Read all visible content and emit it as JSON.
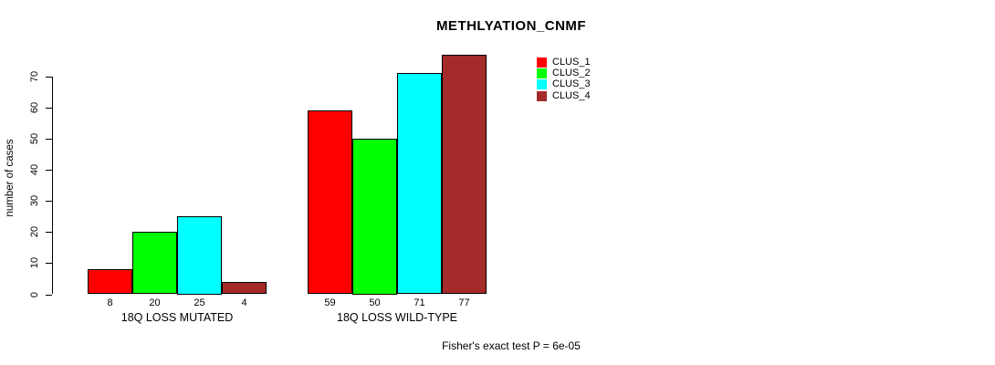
{
  "chart_data": {
    "type": "bar",
    "title": "METHLYATION_CNMF",
    "ylabel": "number of cases",
    "xlabel": "",
    "categories": [
      "18Q LOSS MUTATED",
      "18Q LOSS WILD-TYPE"
    ],
    "series": [
      {
        "name": "CLUS_1",
        "color": "#FF0000",
        "values": [
          8,
          59
        ]
      },
      {
        "name": "CLUS_2",
        "color": "#00FF00",
        "values": [
          20,
          50
        ]
      },
      {
        "name": "CLUS_3",
        "color": "#00FFFF",
        "values": [
          25,
          71
        ]
      },
      {
        "name": "CLUS_4",
        "color": "#A52A2A",
        "values": [
          4,
          77
        ]
      }
    ],
    "bar_value_labels": [
      [
        8,
        20,
        25,
        4
      ],
      [
        59,
        50,
        71,
        77
      ]
    ],
    "yticks": [
      0,
      10,
      20,
      30,
      40,
      50,
      60,
      70
    ],
    "ylim": [
      0,
      77
    ],
    "grid": false,
    "legend_position": "top-right",
    "annotation": "Fisher's exact test P = 6e-05",
    "background_color": "#FFFFFF",
    "axis_color": "#000000",
    "bar_border_color": "#000000"
  }
}
